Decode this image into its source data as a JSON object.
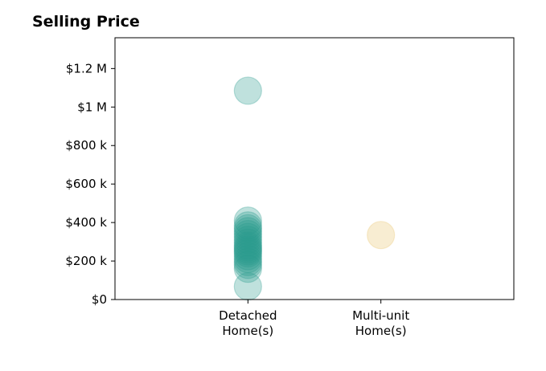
{
  "chart_data": {
    "type": "scatter",
    "title": "Selling Price",
    "xlabel": "",
    "ylabel": "",
    "categories": [
      "Detached\nHome(s)",
      "Multi-unit\nHome(s)"
    ],
    "ylim": [
      0,
      1360000
    ],
    "xlim": [
      -1,
      2
    ],
    "grid": false,
    "yticks": [
      {
        "value": 0,
        "label": "$0"
      },
      {
        "value": 200000,
        "label": "$200 k"
      },
      {
        "value": 400000,
        "label": "$400 k"
      },
      {
        "value": 600000,
        "label": "$600 k"
      },
      {
        "value": 800000,
        "label": "$800 k"
      },
      {
        "value": 1000000,
        "label": "$1 M"
      },
      {
        "value": 1200000,
        "label": "$1.2 M"
      }
    ],
    "series": [
      {
        "color": "#2a9d8f",
        "category_index": 0,
        "values": [
          1085000,
          410000,
          385000,
          370000,
          355000,
          340000,
          325000,
          310000,
          295000,
          280000,
          270000,
          260000,
          250000,
          240000,
          225000,
          210000,
          195000,
          180000,
          160000,
          68000
        ]
      },
      {
        "color": "#e9c46a",
        "category_index": 1,
        "values": [
          335000
        ]
      }
    ]
  }
}
